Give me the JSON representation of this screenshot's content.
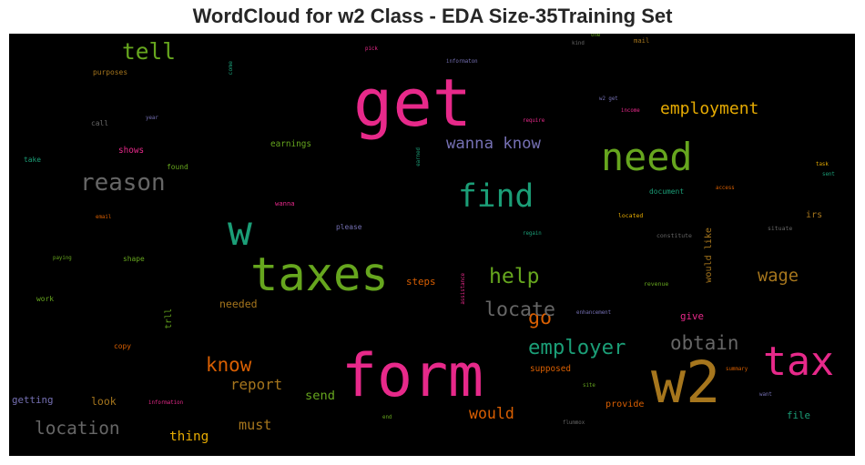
{
  "chart_data": {
    "type": "wordcloud",
    "title": "WordCloud for w2 Class - EDA Size-35Training Set",
    "background": "#000000",
    "colors": {
      "pink": "#e7298a",
      "green": "#66a61e",
      "teal": "#1b9e77",
      "orange": "#d95f02",
      "gold": "#e6ab02",
      "brown": "#a6761d",
      "gray": "#666666",
      "purple": "#7570b3"
    },
    "words": [
      {
        "text": "get",
        "weight": 100,
        "color": "#e7298a",
        "vertical": false
      },
      {
        "text": "form",
        "weight": 90,
        "color": "#e7298a",
        "vertical": false
      },
      {
        "text": "w2",
        "weight": 88,
        "color": "#a6761d",
        "vertical": false
      },
      {
        "text": "taxes",
        "weight": 70,
        "color": "#66a61e",
        "vertical": false
      },
      {
        "text": "w",
        "weight": 62,
        "color": "#1b9e77",
        "vertical": false
      },
      {
        "text": "tax",
        "weight": 60,
        "color": "#e7298a",
        "vertical": false
      },
      {
        "text": "need",
        "weight": 58,
        "color": "#66a61e",
        "vertical": false
      },
      {
        "text": "find",
        "weight": 48,
        "color": "#1b9e77",
        "vertical": false
      },
      {
        "text": "reason",
        "weight": 36,
        "color": "#666666",
        "vertical": false
      },
      {
        "text": "tell",
        "weight": 34,
        "color": "#66a61e",
        "vertical": false
      },
      {
        "text": "help",
        "weight": 32,
        "color": "#66a61e",
        "vertical": false
      },
      {
        "text": "employer",
        "weight": 31,
        "color": "#1b9e77",
        "vertical": false
      },
      {
        "text": "go",
        "weight": 30,
        "color": "#d95f02",
        "vertical": false
      },
      {
        "text": "locate",
        "weight": 30,
        "color": "#666666",
        "vertical": false
      },
      {
        "text": "obtain",
        "weight": 29,
        "color": "#666666",
        "vertical": false
      },
      {
        "text": "know",
        "weight": 29,
        "color": "#d95f02",
        "vertical": false
      },
      {
        "text": "location",
        "weight": 27,
        "color": "#666666",
        "vertical": false
      },
      {
        "text": "wage",
        "weight": 26,
        "color": "#a6761d",
        "vertical": false
      },
      {
        "text": "employment",
        "weight": 25,
        "color": "#e6ab02",
        "vertical": false
      },
      {
        "text": "wanna know",
        "weight": 24,
        "color": "#7570b3",
        "vertical": false
      },
      {
        "text": "would",
        "weight": 23,
        "color": "#d95f02",
        "vertical": false
      },
      {
        "text": "report",
        "weight": 22,
        "color": "#a6761d",
        "vertical": false
      },
      {
        "text": "must",
        "weight": 21,
        "color": "#a6761d",
        "vertical": false
      },
      {
        "text": "thing",
        "weight": 20,
        "color": "#e6ab02",
        "vertical": false
      },
      {
        "text": "send",
        "weight": 19,
        "color": "#66a61e",
        "vertical": false
      },
      {
        "text": "needed",
        "weight": 16,
        "color": "#a6761d",
        "vertical": false
      },
      {
        "text": "look",
        "weight": 16,
        "color": "#a6761d",
        "vertical": false
      },
      {
        "text": "getting",
        "weight": 15,
        "color": "#7570b3",
        "vertical": false
      },
      {
        "text": "steps",
        "weight": 15,
        "color": "#d95f02",
        "vertical": false
      },
      {
        "text": "file",
        "weight": 15,
        "color": "#1b9e77",
        "vertical": false
      },
      {
        "text": "give",
        "weight": 15,
        "color": "#e7298a",
        "vertical": false
      },
      {
        "text": "provide",
        "weight": 14,
        "color": "#d95f02",
        "vertical": false
      },
      {
        "text": "supposed",
        "weight": 13,
        "color": "#d95f02",
        "vertical": false
      },
      {
        "text": "irs",
        "weight": 14,
        "color": "#a6761d",
        "vertical": false
      },
      {
        "text": "would like",
        "weight": 14,
        "color": "#a6761d",
        "vertical": true
      },
      {
        "text": "earnings",
        "weight": 13,
        "color": "#66a61e",
        "vertical": false
      },
      {
        "text": "shows",
        "weight": 13,
        "color": "#e7298a",
        "vertical": false
      },
      {
        "text": "trll",
        "weight": 13,
        "color": "#66a61e",
        "vertical": true
      },
      {
        "text": "document",
        "weight": 11,
        "color": "#1b9e77",
        "vertical": false
      },
      {
        "text": "purposes",
        "weight": 11,
        "color": "#a6761d",
        "vertical": false
      },
      {
        "text": "call",
        "weight": 11,
        "color": "#666666",
        "vertical": false
      },
      {
        "text": "take",
        "weight": 11,
        "color": "#1b9e77",
        "vertical": false
      },
      {
        "text": "found",
        "weight": 11,
        "color": "#66a61e",
        "vertical": false
      },
      {
        "text": "please",
        "weight": 11,
        "color": "#7570b3",
        "vertical": false
      },
      {
        "text": "shape",
        "weight": 11,
        "color": "#66a61e",
        "vertical": false
      },
      {
        "text": "work",
        "weight": 11,
        "color": "#66a61e",
        "vertical": false
      },
      {
        "text": "copy",
        "weight": 11,
        "color": "#d95f02",
        "vertical": false
      },
      {
        "text": "mail",
        "weight": 10,
        "color": "#a6761d",
        "vertical": false
      },
      {
        "text": "wanna",
        "weight": 10,
        "color": "#e7298a",
        "vertical": false
      },
      {
        "text": "come",
        "weight": 9,
        "color": "#1b9e77",
        "vertical": true
      },
      {
        "text": "located",
        "weight": 9,
        "color": "#e6ab02",
        "vertical": false
      },
      {
        "text": "constitute",
        "weight": 9,
        "color": "#666666",
        "vertical": false
      },
      {
        "text": "situate",
        "weight": 9,
        "color": "#666666",
        "vertical": false
      },
      {
        "text": "revenue",
        "weight": 9,
        "color": "#66a61e",
        "vertical": false
      },
      {
        "text": "access",
        "weight": 8,
        "color": "#d95f02",
        "vertical": false
      },
      {
        "text": "task",
        "weight": 8,
        "color": "#e6ab02",
        "vertical": false
      },
      {
        "text": "sent",
        "weight": 8,
        "color": "#1b9e77",
        "vertical": false
      },
      {
        "text": "kind",
        "weight": 8,
        "color": "#666666",
        "vertical": false
      },
      {
        "text": "one",
        "weight": 8,
        "color": "#66a61e",
        "vertical": false
      },
      {
        "text": "pick",
        "weight": 8,
        "color": "#e7298a",
        "vertical": false
      },
      {
        "text": "informaton",
        "weight": 8,
        "color": "#7570b3",
        "vertical": false
      },
      {
        "text": "year",
        "weight": 8,
        "color": "#7570b3",
        "vertical": false
      },
      {
        "text": "require",
        "weight": 8,
        "color": "#e7298a",
        "vertical": false
      },
      {
        "text": "w2 get",
        "weight": 8,
        "color": "#7570b3",
        "vertical": false
      },
      {
        "text": "income",
        "weight": 8,
        "color": "#e7298a",
        "vertical": false
      },
      {
        "text": "earned",
        "weight": 8,
        "color": "#1b9e77",
        "vertical": true
      },
      {
        "text": "email",
        "weight": 8,
        "color": "#d95f02",
        "vertical": false
      },
      {
        "text": "regain",
        "weight": 8,
        "color": "#1b9e77",
        "vertical": false
      },
      {
        "text": "paying",
        "weight": 8,
        "color": "#66a61e",
        "vertical": false
      },
      {
        "text": "assistance",
        "weight": 8,
        "color": "#e7298a",
        "vertical": true
      },
      {
        "text": "enhancement",
        "weight": 8,
        "color": "#7570b3",
        "vertical": false
      },
      {
        "text": "summary",
        "weight": 8,
        "color": "#d95f02",
        "vertical": false
      },
      {
        "text": "site",
        "weight": 8,
        "color": "#66a61e",
        "vertical": false
      },
      {
        "text": "want",
        "weight": 8,
        "color": "#7570b3",
        "vertical": false
      },
      {
        "text": "information",
        "weight": 8,
        "color": "#e7298a",
        "vertical": false
      },
      {
        "text": "end",
        "weight": 8,
        "color": "#66a61e",
        "vertical": false
      },
      {
        "text": "flummox",
        "weight": 8,
        "color": "#666666",
        "vertical": false
      }
    ]
  }
}
